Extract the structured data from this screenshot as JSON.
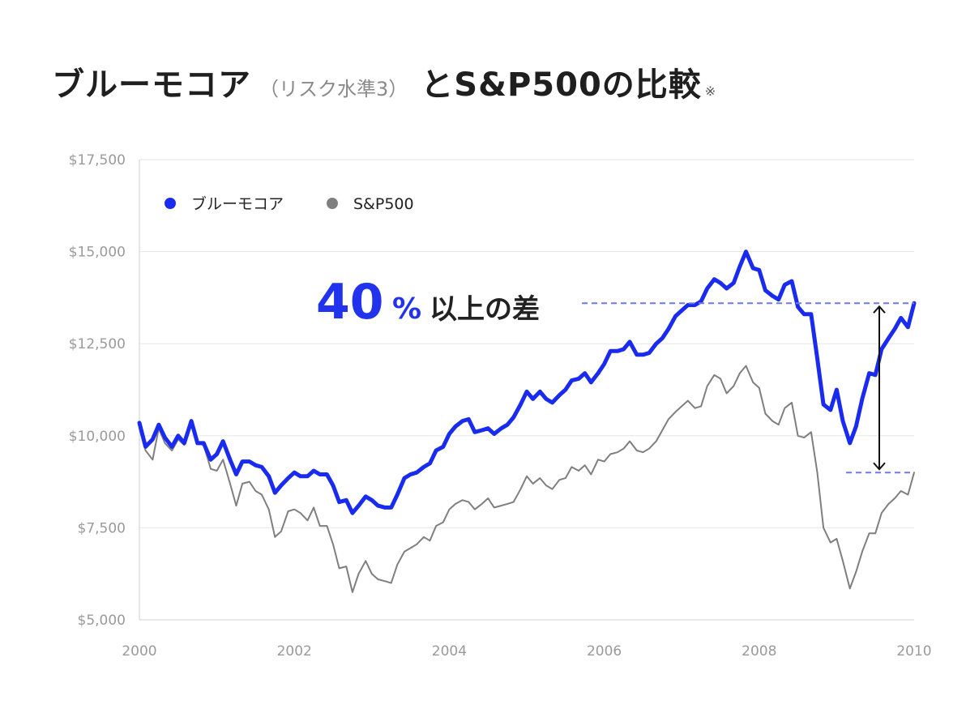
{
  "title": {
    "main": "ブルーモコア",
    "sub": "（リスク水準3）",
    "main2": "とS&P500の比較",
    "note": "※"
  },
  "colors": {
    "bluemocoa": "#1a2bf0",
    "sp500": "#7f7f7f",
    "grid": "#e6e6e6",
    "dashed": "#6f78ee",
    "accent": "#2233ee"
  },
  "annotation": {
    "big": "40",
    "pct": "%",
    "rest": "以上の差"
  },
  "chart_data": {
    "type": "line",
    "title": "ブルーモコア（リスク水準3）とS&P500の比較※",
    "xlabel": "",
    "ylabel": "",
    "xlim": [
      2000,
      2010
    ],
    "ylim": [
      5000,
      17500
    ],
    "grid": true,
    "legend_position": "top-left",
    "x_ticks": [
      2000,
      2002,
      2004,
      2006,
      2008,
      2010
    ],
    "x_tick_labels": [
      "2000",
      "2002",
      "2004",
      "2006",
      "2008",
      "2010"
    ],
    "y_ticks": [
      5000,
      7500,
      10000,
      12500,
      15000,
      17500
    ],
    "y_tick_labels": [
      "$5,000",
      "$7,500",
      "$10,000",
      "$12,500",
      "$15,000",
      "$17,500"
    ],
    "series": [
      {
        "name": "ブルーモコア",
        "points": [
          [
            2000.0,
            10350
          ],
          [
            2000.08,
            9700
          ],
          [
            2000.17,
            9900
          ],
          [
            2000.25,
            10300
          ],
          [
            2000.33,
            9950
          ],
          [
            2000.42,
            9700
          ],
          [
            2000.5,
            10000
          ],
          [
            2000.58,
            9800
          ],
          [
            2000.67,
            10400
          ],
          [
            2000.75,
            9800
          ],
          [
            2000.83,
            9800
          ],
          [
            2000.92,
            9350
          ],
          [
            2001.0,
            9500
          ],
          [
            2001.08,
            9850
          ],
          [
            2001.17,
            9350
          ],
          [
            2001.25,
            8950
          ],
          [
            2001.33,
            9300
          ],
          [
            2001.42,
            9300
          ],
          [
            2001.5,
            9200
          ],
          [
            2001.58,
            9150
          ],
          [
            2001.67,
            8900
          ],
          [
            2001.75,
            8450
          ],
          [
            2001.83,
            8650
          ],
          [
            2001.92,
            8850
          ],
          [
            2002.0,
            9000
          ],
          [
            2002.08,
            8900
          ],
          [
            2002.17,
            8900
          ],
          [
            2002.25,
            9050
          ],
          [
            2002.33,
            8950
          ],
          [
            2002.42,
            8950
          ],
          [
            2002.5,
            8650
          ],
          [
            2002.58,
            8200
          ],
          [
            2002.67,
            8250
          ],
          [
            2002.75,
            7900
          ],
          [
            2002.83,
            8100
          ],
          [
            2002.92,
            8350
          ],
          [
            2003.0,
            8250
          ],
          [
            2003.08,
            8100
          ],
          [
            2003.17,
            8050
          ],
          [
            2003.25,
            8050
          ],
          [
            2003.33,
            8400
          ],
          [
            2003.42,
            8850
          ],
          [
            2003.5,
            8950
          ],
          [
            2003.58,
            9000
          ],
          [
            2003.67,
            9150
          ],
          [
            2003.75,
            9250
          ],
          [
            2003.83,
            9600
          ],
          [
            2003.92,
            9700
          ],
          [
            2004.0,
            10050
          ],
          [
            2004.08,
            10250
          ],
          [
            2004.17,
            10400
          ],
          [
            2004.25,
            10450
          ],
          [
            2004.33,
            10100
          ],
          [
            2004.42,
            10150
          ],
          [
            2004.5,
            10200
          ],
          [
            2004.58,
            10050
          ],
          [
            2004.67,
            10200
          ],
          [
            2004.75,
            10300
          ],
          [
            2004.83,
            10500
          ],
          [
            2004.92,
            10850
          ],
          [
            2005.0,
            11200
          ],
          [
            2005.08,
            11000
          ],
          [
            2005.17,
            11200
          ],
          [
            2005.25,
            11000
          ],
          [
            2005.33,
            10900
          ],
          [
            2005.42,
            11100
          ],
          [
            2005.5,
            11250
          ],
          [
            2005.58,
            11500
          ],
          [
            2005.67,
            11550
          ],
          [
            2005.75,
            11700
          ],
          [
            2005.83,
            11450
          ],
          [
            2005.92,
            11700
          ],
          [
            2006.0,
            11950
          ],
          [
            2006.08,
            12300
          ],
          [
            2006.17,
            12300
          ],
          [
            2006.25,
            12350
          ],
          [
            2006.33,
            12550
          ],
          [
            2006.42,
            12200
          ],
          [
            2006.5,
            12200
          ],
          [
            2006.58,
            12250
          ],
          [
            2006.67,
            12500
          ],
          [
            2006.75,
            12650
          ],
          [
            2006.83,
            12900
          ],
          [
            2006.92,
            13250
          ],
          [
            2007.0,
            13400
          ],
          [
            2007.08,
            13550
          ],
          [
            2007.17,
            13550
          ],
          [
            2007.25,
            13650
          ],
          [
            2007.33,
            14000
          ],
          [
            2007.42,
            14250
          ],
          [
            2007.5,
            14150
          ],
          [
            2007.58,
            14000
          ],
          [
            2007.67,
            14150
          ],
          [
            2007.75,
            14600
          ],
          [
            2007.83,
            15000
          ],
          [
            2007.92,
            14550
          ],
          [
            2008.0,
            14500
          ],
          [
            2008.08,
            13950
          ],
          [
            2008.17,
            13800
          ],
          [
            2008.25,
            13700
          ],
          [
            2008.33,
            14100
          ],
          [
            2008.42,
            14200
          ],
          [
            2008.5,
            13500
          ],
          [
            2008.58,
            13300
          ],
          [
            2008.67,
            13300
          ],
          [
            2008.75,
            12100
          ],
          [
            2008.83,
            10850
          ],
          [
            2008.92,
            10700
          ],
          [
            2009.0,
            11250
          ],
          [
            2009.08,
            10400
          ],
          [
            2009.17,
            9800
          ],
          [
            2009.25,
            10250
          ],
          [
            2009.33,
            11000
          ],
          [
            2009.42,
            11700
          ],
          [
            2009.5,
            11650
          ],
          [
            2009.58,
            12350
          ],
          [
            2009.67,
            12650
          ],
          [
            2009.75,
            12900
          ],
          [
            2009.83,
            13200
          ],
          [
            2009.92,
            12950
          ],
          [
            2010.0,
            13600
          ]
        ]
      },
      {
        "name": "S&P500",
        "points": [
          [
            2000.0,
            10200
          ],
          [
            2000.08,
            9600
          ],
          [
            2000.17,
            9350
          ],
          [
            2000.25,
            10200
          ],
          [
            2000.33,
            9800
          ],
          [
            2000.42,
            9600
          ],
          [
            2000.5,
            9900
          ],
          [
            2000.58,
            9750
          ],
          [
            2000.67,
            10350
          ],
          [
            2000.75,
            9800
          ],
          [
            2000.83,
            9750
          ],
          [
            2000.92,
            9100
          ],
          [
            2001.0,
            9050
          ],
          [
            2001.08,
            9350
          ],
          [
            2001.17,
            8700
          ],
          [
            2001.25,
            8100
          ],
          [
            2001.33,
            8700
          ],
          [
            2001.42,
            8750
          ],
          [
            2001.5,
            8500
          ],
          [
            2001.58,
            8400
          ],
          [
            2001.67,
            8000
          ],
          [
            2001.75,
            7250
          ],
          [
            2001.83,
            7400
          ],
          [
            2001.92,
            7950
          ],
          [
            2002.0,
            8000
          ],
          [
            2002.08,
            7900
          ],
          [
            2002.17,
            7700
          ],
          [
            2002.25,
            8050
          ],
          [
            2002.33,
            7550
          ],
          [
            2002.42,
            7550
          ],
          [
            2002.5,
            7050
          ],
          [
            2002.58,
            6400
          ],
          [
            2002.67,
            6450
          ],
          [
            2002.75,
            5750
          ],
          [
            2002.83,
            6250
          ],
          [
            2002.92,
            6600
          ],
          [
            2003.0,
            6250
          ],
          [
            2003.08,
            6100
          ],
          [
            2003.17,
            6050
          ],
          [
            2003.25,
            6000
          ],
          [
            2003.33,
            6500
          ],
          [
            2003.42,
            6850
          ],
          [
            2003.5,
            6950
          ],
          [
            2003.58,
            7050
          ],
          [
            2003.67,
            7250
          ],
          [
            2003.75,
            7150
          ],
          [
            2003.83,
            7550
          ],
          [
            2003.92,
            7650
          ],
          [
            2004.0,
            8000
          ],
          [
            2004.08,
            8150
          ],
          [
            2004.17,
            8250
          ],
          [
            2004.25,
            8200
          ],
          [
            2004.33,
            8000
          ],
          [
            2004.42,
            8150
          ],
          [
            2004.5,
            8300
          ],
          [
            2004.58,
            8050
          ],
          [
            2004.67,
            8100
          ],
          [
            2004.75,
            8150
          ],
          [
            2004.83,
            8200
          ],
          [
            2004.92,
            8550
          ],
          [
            2005.0,
            8900
          ],
          [
            2005.08,
            8700
          ],
          [
            2005.17,
            8850
          ],
          [
            2005.25,
            8650
          ],
          [
            2005.33,
            8550
          ],
          [
            2005.42,
            8800
          ],
          [
            2005.5,
            8850
          ],
          [
            2005.58,
            9150
          ],
          [
            2005.67,
            9050
          ],
          [
            2005.75,
            9200
          ],
          [
            2005.83,
            8950
          ],
          [
            2005.92,
            9350
          ],
          [
            2006.0,
            9300
          ],
          [
            2006.08,
            9500
          ],
          [
            2006.17,
            9550
          ],
          [
            2006.25,
            9650
          ],
          [
            2006.33,
            9850
          ],
          [
            2006.42,
            9600
          ],
          [
            2006.5,
            9550
          ],
          [
            2006.58,
            9650
          ],
          [
            2006.67,
            9850
          ],
          [
            2006.75,
            10150
          ],
          [
            2006.83,
            10450
          ],
          [
            2006.92,
            10650
          ],
          [
            2007.0,
            10800
          ],
          [
            2007.08,
            10950
          ],
          [
            2007.17,
            10750
          ],
          [
            2007.25,
            10800
          ],
          [
            2007.33,
            11350
          ],
          [
            2007.42,
            11650
          ],
          [
            2007.5,
            11550
          ],
          [
            2007.58,
            11150
          ],
          [
            2007.67,
            11350
          ],
          [
            2007.75,
            11700
          ],
          [
            2007.83,
            11900
          ],
          [
            2007.92,
            11450
          ],
          [
            2008.0,
            11300
          ],
          [
            2008.08,
            10600
          ],
          [
            2008.17,
            10400
          ],
          [
            2008.25,
            10300
          ],
          [
            2008.33,
            10750
          ],
          [
            2008.42,
            10900
          ],
          [
            2008.5,
            10000
          ],
          [
            2008.58,
            9950
          ],
          [
            2008.67,
            10100
          ],
          [
            2008.75,
            9000
          ],
          [
            2008.83,
            7500
          ],
          [
            2008.92,
            7100
          ],
          [
            2009.0,
            7200
          ],
          [
            2009.08,
            6600
          ],
          [
            2009.17,
            5850
          ],
          [
            2009.25,
            6300
          ],
          [
            2009.33,
            6850
          ],
          [
            2009.42,
            7350
          ],
          [
            2009.5,
            7350
          ],
          [
            2009.58,
            7900
          ],
          [
            2009.67,
            8150
          ],
          [
            2009.75,
            8300
          ],
          [
            2009.83,
            8500
          ],
          [
            2009.92,
            8400
          ],
          [
            2010.0,
            9000
          ]
        ]
      }
    ]
  }
}
